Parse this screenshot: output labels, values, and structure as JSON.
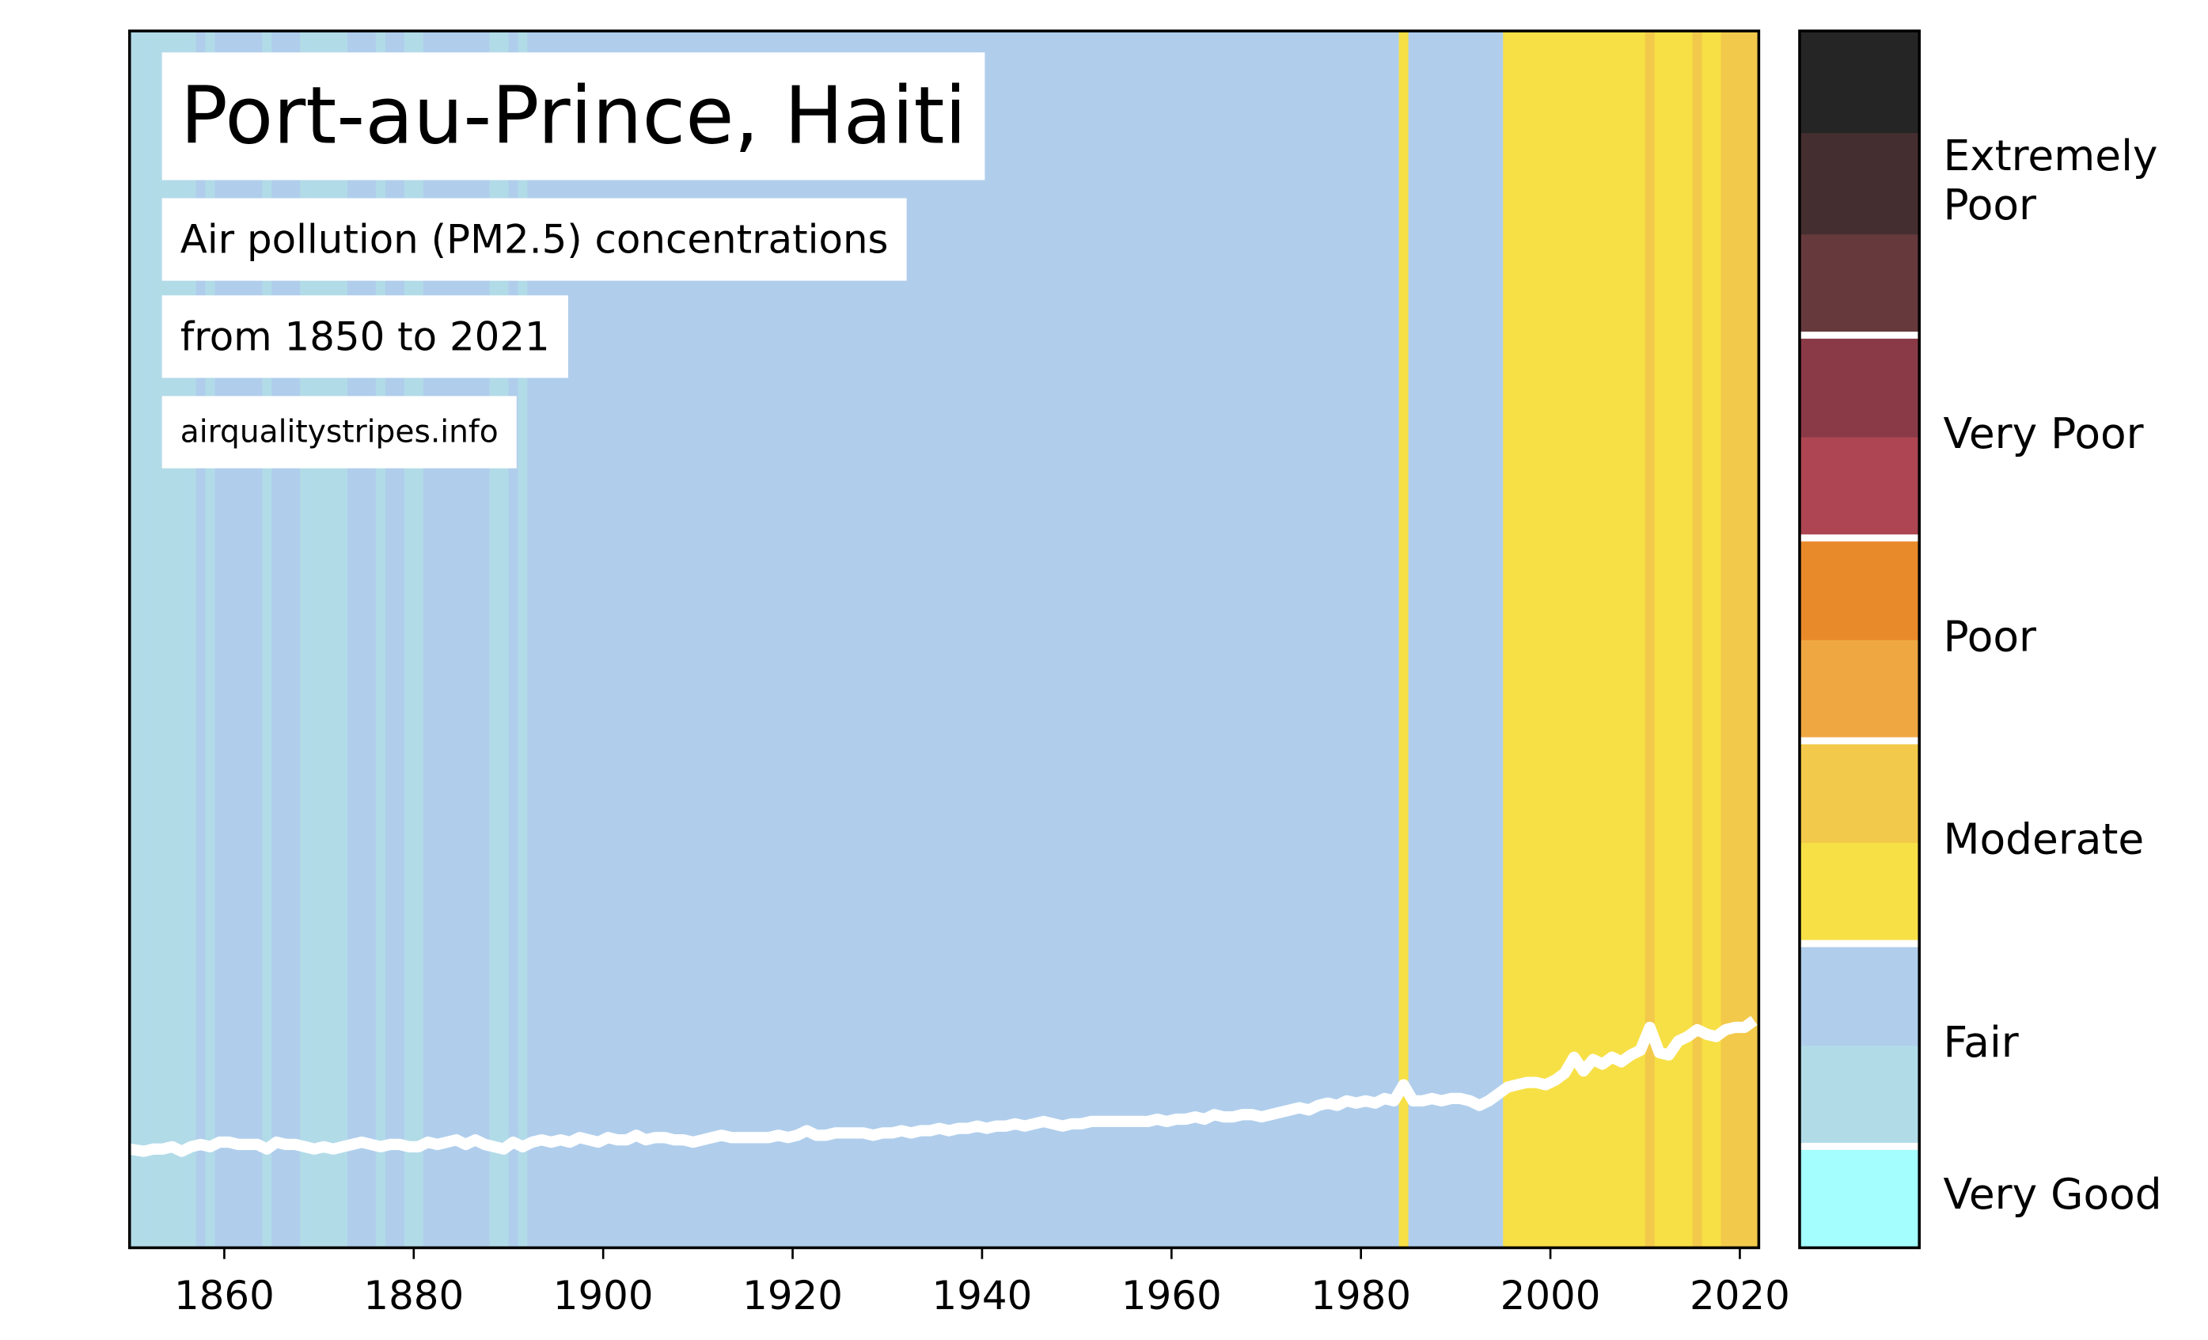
{
  "chart_data": {
    "type": "stripes",
    "title": "Port-au-Prince, Haiti",
    "subtitle": "Air pollution (PM2.5) concentrations",
    "period": "from 1850 to 2021",
    "source": "airqualitystripes.info",
    "x": [
      1850,
      1851,
      1852,
      1853,
      1854,
      1855,
      1856,
      1857,
      1858,
      1859,
      1860,
      1861,
      1862,
      1863,
      1864,
      1865,
      1866,
      1867,
      1868,
      1869,
      1870,
      1871,
      1872,
      1873,
      1874,
      1875,
      1876,
      1877,
      1878,
      1879,
      1880,
      1881,
      1882,
      1883,
      1884,
      1885,
      1886,
      1887,
      1888,
      1889,
      1890,
      1891,
      1892,
      1893,
      1894,
      1895,
      1896,
      1897,
      1898,
      1899,
      1900,
      1901,
      1902,
      1903,
      1904,
      1905,
      1906,
      1907,
      1908,
      1909,
      1910,
      1911,
      1912,
      1913,
      1914,
      1915,
      1916,
      1917,
      1918,
      1919,
      1920,
      1921,
      1922,
      1923,
      1924,
      1925,
      1926,
      1927,
      1928,
      1929,
      1930,
      1931,
      1932,
      1933,
      1934,
      1935,
      1936,
      1937,
      1938,
      1939,
      1940,
      1941,
      1942,
      1943,
      1944,
      1945,
      1946,
      1947,
      1948,
      1949,
      1950,
      1951,
      1952,
      1953,
      1954,
      1955,
      1956,
      1957,
      1958,
      1959,
      1960,
      1961,
      1962,
      1963,
      1964,
      1965,
      1966,
      1967,
      1968,
      1969,
      1970,
      1971,
      1972,
      1973,
      1974,
      1975,
      1976,
      1977,
      1978,
      1979,
      1980,
      1981,
      1982,
      1983,
      1984,
      1985,
      1986,
      1987,
      1988,
      1989,
      1990,
      1991,
      1992,
      1993,
      1994,
      1995,
      1996,
      1997,
      1998,
      1999,
      2000,
      2001,
      2002,
      2003,
      2004,
      2005,
      2006,
      2007,
      2008,
      2009,
      2010,
      2011,
      2012,
      2013,
      2014,
      2015,
      2016,
      2017,
      2018,
      2019,
      2020,
      2021
    ],
    "values": [
      7.3,
      7.2,
      7.3,
      7.3,
      7.4,
      7.2,
      7.4,
      7.5,
      7.4,
      7.6,
      7.6,
      7.5,
      7.5,
      7.5,
      7.3,
      7.6,
      7.5,
      7.5,
      7.4,
      7.3,
      7.4,
      7.3,
      7.4,
      7.5,
      7.6,
      7.5,
      7.4,
      7.5,
      7.5,
      7.4,
      7.4,
      7.6,
      7.5,
      7.6,
      7.7,
      7.5,
      7.7,
      7.5,
      7.4,
      7.3,
      7.6,
      7.4,
      7.6,
      7.7,
      7.6,
      7.7,
      7.6,
      7.8,
      7.7,
      7.6,
      7.8,
      7.7,
      7.7,
      7.9,
      7.7,
      7.8,
      7.8,
      7.7,
      7.7,
      7.6,
      7.7,
      7.8,
      7.9,
      7.8,
      7.8,
      7.8,
      7.8,
      7.8,
      7.9,
      7.8,
      7.9,
      8.1,
      7.9,
      7.9,
      8.0,
      8.0,
      8.0,
      8.0,
      7.9,
      8.0,
      8.0,
      8.1,
      8.0,
      8.1,
      8.1,
      8.2,
      8.1,
      8.2,
      8.2,
      8.3,
      8.2,
      8.3,
      8.3,
      8.4,
      8.3,
      8.4,
      8.5,
      8.4,
      8.3,
      8.4,
      8.4,
      8.5,
      8.5,
      8.5,
      8.5,
      8.5,
      8.5,
      8.5,
      8.6,
      8.5,
      8.6,
      8.6,
      8.7,
      8.6,
      8.8,
      8.7,
      8.7,
      8.8,
      8.8,
      8.7,
      8.8,
      8.9,
      9.0,
      9.1,
      9.0,
      9.2,
      9.3,
      9.2,
      9.4,
      9.3,
      9.4,
      9.3,
      9.5,
      9.4,
      10.1,
      9.4,
      9.4,
      9.5,
      9.4,
      9.5,
      9.5,
      9.4,
      9.2,
      9.4,
      9.7,
      10.0,
      10.1,
      10.2,
      10.2,
      10.1,
      10.3,
      10.6,
      11.3,
      10.7,
      11.2,
      11.0,
      11.3,
      11.1,
      11.4,
      11.6,
      12.6,
      11.5,
      11.4,
      12.0,
      12.2,
      12.5,
      12.3,
      12.2,
      12.5,
      12.6,
      12.6,
      12.9
    ],
    "line_color": "#ffffff",
    "xlim": [
      1850,
      2022
    ],
    "xticks": [
      1860,
      1880,
      1900,
      1920,
      1940,
      1960,
      1980,
      2000,
      2020
    ],
    "ylim": [
      3,
      56
    ],
    "colorbar": {
      "boundaries": [
        0,
        5,
        7.5,
        10,
        12.5,
        15,
        17.5,
        20,
        25,
        30,
        35,
        40,
        50
      ],
      "classes": [
        {
          "label": [
            "Very Good"
          ],
          "colors": [
            "#a5fefe"
          ]
        },
        {
          "label": [
            "Fair"
          ],
          "colors": [
            "#b2dbe8",
            "#b0ceec"
          ]
        },
        {
          "label": [
            "Moderate"
          ],
          "colors": [
            "#f7e046",
            "#f2c94a"
          ]
        },
        {
          "label": [
            "Poor"
          ],
          "colors": [
            "#efa742",
            "#e88a2a"
          ]
        },
        {
          "label": [
            "Very Poor"
          ],
          "colors": [
            "#ad4652",
            "#8a3a47"
          ]
        },
        {
          "label": [
            "Extremely",
            "Poor"
          ],
          "colors": [
            "#663a3d",
            "#452e30",
            "#252525"
          ]
        }
      ]
    }
  }
}
